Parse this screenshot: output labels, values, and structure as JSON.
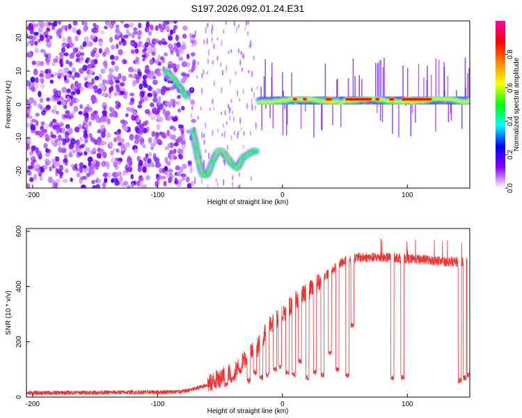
{
  "chart_data": [
    {
      "type": "heatmap",
      "title": "S197.2026.092.01.24.E31",
      "xlabel": "Height of straight line (km)",
      "ylabel": "Frequency (Hz)",
      "xlim": [
        -205,
        150
      ],
      "ylim": [
        -25,
        25
      ],
      "xticks": [
        -200,
        -100,
        0,
        100
      ],
      "yticks": [
        -20,
        -10,
        0,
        10,
        20
      ],
      "colorbar": {
        "label": "Normalized spectral amplitude",
        "range": [
          0,
          1
        ],
        "ticks": [
          "0.0",
          "0.2",
          "0.4",
          "0.6",
          "0.8"
        ],
        "tick_values": [
          0,
          0.2,
          0.4,
          0.6,
          0.8
        ],
        "stops": [
          "#ffffff",
          "#8800ff",
          "#0000ff",
          "#00ffff",
          "#00ff00",
          "#ffff00",
          "#ff8800",
          "#ff0000",
          "#ff00aa"
        ]
      },
      "features": {
        "noise_region_x": [
          -205,
          -70
        ],
        "descending_track": [
          [
            -93,
            10
          ],
          [
            -88,
            8
          ],
          [
            -84,
            6
          ],
          [
            -80,
            4
          ],
          [
            -77,
            2.5
          ]
        ],
        "lower_track": [
          [
            -72,
            -8
          ],
          [
            -69,
            -13
          ],
          [
            -67,
            -17
          ],
          [
            -64,
            -21
          ],
          [
            -60,
            -21
          ],
          [
            -56,
            -17
          ],
          [
            -52,
            -14
          ],
          [
            -48,
            -14
          ],
          [
            -44,
            -16
          ],
          [
            -40,
            -18
          ],
          [
            -36,
            -19
          ],
          [
            -32,
            -16
          ],
          [
            -28,
            -15
          ],
          [
            -24,
            -14
          ],
          [
            -21,
            -14
          ]
        ],
        "main_band": {
          "x": [
            -20,
            150
          ],
          "freq": 2,
          "peak_segments": [
            [
              8,
              12
            ],
            [
              16,
              20
            ],
            [
              34,
              40
            ],
            [
              50,
              72
            ],
            [
              74,
              78
            ],
            [
              85,
              90
            ],
            [
              95,
              120
            ]
          ]
        }
      }
    },
    {
      "type": "line",
      "xlabel": "Height of straight line (km)",
      "ylabel": "SNR (10 * v/v)",
      "xlim": [
        -205,
        150
      ],
      "ylim": [
        0,
        610
      ],
      "xticks": [
        -200,
        -100,
        0,
        100
      ],
      "yticks": [
        0,
        200,
        400,
        600
      ],
      "color": "#ee3333",
      "envelope": {
        "x": [
          -205,
          -100,
          -80,
          -70,
          -60,
          -50,
          -45,
          -40,
          -30,
          -20,
          -10,
          0,
          10,
          20,
          30,
          40,
          50,
          60,
          70,
          80,
          90,
          100,
          110,
          120,
          130,
          140,
          150
        ],
        "y": [
          15,
          18,
          20,
          30,
          45,
          70,
          95,
          80,
          140,
          180,
          260,
          300,
          350,
          380,
          420,
          460,
          495,
          505,
          505,
          505,
          505,
          500,
          498,
          495,
          490,
          490,
          490
        ]
      },
      "dropouts": [
        [
          -45,
          35
        ],
        [
          -40,
          60
        ],
        [
          -34,
          90
        ],
        [
          -27,
          50
        ],
        [
          -22,
          80
        ],
        [
          -17,
          60
        ],
        [
          -12,
          70
        ],
        [
          -6,
          90
        ],
        [
          -2,
          100
        ],
        [
          4,
          80
        ],
        [
          9,
          70
        ],
        [
          14,
          120
        ],
        [
          20,
          60
        ],
        [
          26,
          80
        ],
        [
          32,
          70
        ],
        [
          38,
          150
        ],
        [
          44,
          90
        ],
        [
          52,
          70
        ],
        [
          56,
          250
        ],
        [
          88,
          60
        ],
        [
          96,
          60
        ],
        [
          142,
          50
        ],
        [
          146,
          60
        ],
        [
          149,
          70
        ]
      ]
    }
  ]
}
